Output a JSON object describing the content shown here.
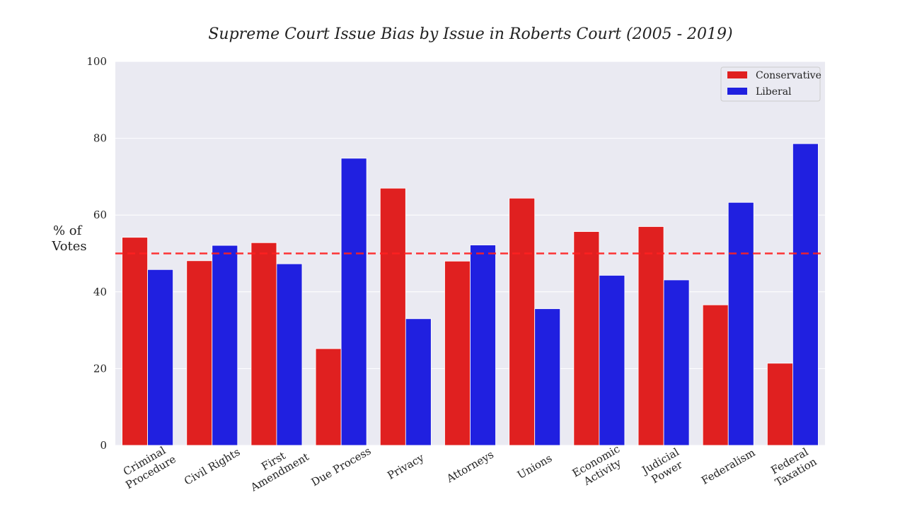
{
  "chart_data": {
    "type": "bar",
    "title": "Supreme Court Issue Bias by Issue in Roberts Court (2005 - 2019)",
    "xlabel": "",
    "ylabel": "% of Votes",
    "ylabel_lines": [
      "% of",
      "Votes"
    ],
    "ylim": [
      0,
      100
    ],
    "yticks": [
      0,
      20,
      40,
      60,
      80,
      100
    ],
    "grid": true,
    "legend_position": "top-right",
    "reference_line": {
      "y": 50,
      "style": "dashed",
      "color": "#ff2020"
    },
    "categories": [
      [
        "Criminal",
        "Procedure"
      ],
      [
        "Civil Rights"
      ],
      [
        "First",
        "Amendment"
      ],
      [
        "Due Process"
      ],
      [
        "Privacy"
      ],
      [
        "Attorneys"
      ],
      [
        "Unions"
      ],
      [
        "Economic",
        "Activity"
      ],
      [
        "Judicial",
        "Power"
      ],
      [
        "Federalism"
      ],
      [
        "Federal",
        "Taxation"
      ]
    ],
    "series": [
      {
        "name": "Conservative",
        "color": "#e02020",
        "values": [
          54.2,
          48.1,
          52.8,
          25.2,
          67.0,
          48.0,
          64.4,
          55.7,
          57.0,
          36.6,
          21.4
        ]
      },
      {
        "name": "Liberal",
        "color": "#2020e0",
        "values": [
          45.8,
          52.1,
          47.3,
          74.8,
          33.0,
          52.2,
          35.6,
          44.3,
          43.1,
          63.3,
          78.6
        ]
      }
    ]
  }
}
